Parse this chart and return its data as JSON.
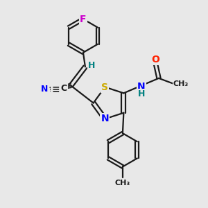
{
  "bg_color": "#e8e8e8",
  "bond_color": "#1a1a1a",
  "bond_width": 1.6,
  "atom_colors": {
    "F": "#cc00cc",
    "N": "#0000ff",
    "S": "#ccaa00",
    "O": "#ff2200",
    "C": "#1a1a1a",
    "H": "#008080"
  },
  "font_size": 9,
  "fig_size": [
    3.0,
    3.0
  ],
  "dpi": 100
}
